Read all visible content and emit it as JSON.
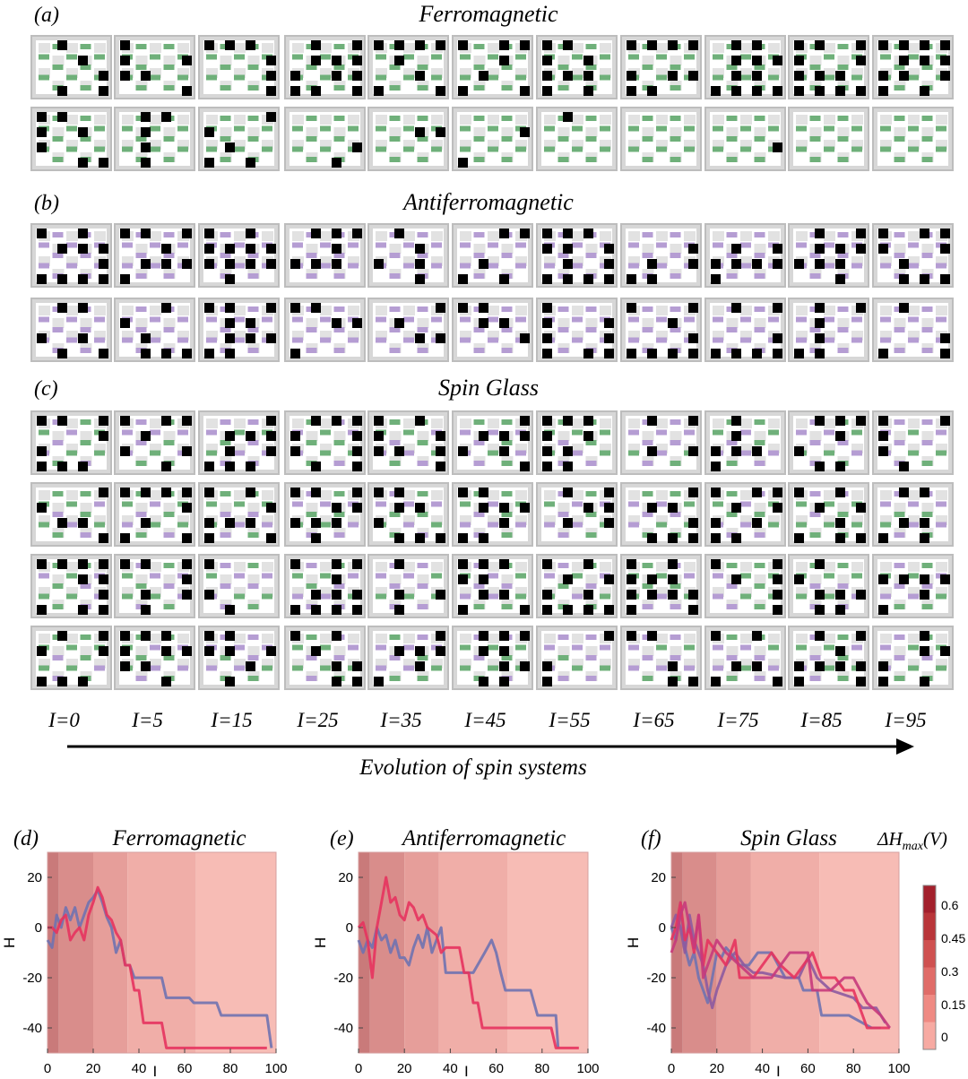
{
  "panel_a": {
    "label": "(a)",
    "title": "Ferromagnetic"
  },
  "panel_b": {
    "label": "(b)",
    "title": "Antiferromagnetic"
  },
  "panel_c": {
    "label": "(c)",
    "title": "Spin Glass"
  },
  "iteration_labels": [
    "I=0",
    "I=5",
    "I=15",
    "I=25",
    "I=35",
    "I=45",
    "I=55",
    "I=65",
    "I=75",
    "I=85",
    "I=95"
  ],
  "arrow_label": "Evolution of spin systems",
  "colors": {
    "ferro_bond": "#6fb07a",
    "antiferro_bond": "#b59dd3",
    "spin": "#000000",
    "tile_bg": "#d7d7d7",
    "tile_border": "#bdbdbd"
  },
  "colorbar": {
    "title": "ΔH",
    "title_sub": "max",
    "title_unit": "(V)",
    "ticks": [
      "0.6",
      "0.45",
      "0.3",
      "0.15",
      "0"
    ],
    "colors": [
      "#a3202c",
      "#b93539",
      "#cf5150",
      "#e06c68",
      "#ef8a83",
      "#f7aaa2"
    ]
  },
  "chart_data": [
    {
      "type": "line",
      "label": "(d)",
      "title": "Ferromagnetic",
      "xlabel": "I",
      "ylabel": "H",
      "xlim": [
        0,
        100
      ],
      "ylim": [
        -50,
        30
      ],
      "xticks": [
        "0",
        "20",
        "40",
        "60",
        "80",
        "100"
      ],
      "yticks": [
        "20",
        "0",
        "-20",
        "-40"
      ],
      "bands": [
        {
          "from": 0,
          "to": 5,
          "level": 0.6
        },
        {
          "from": 5,
          "to": 20,
          "level": 0.45
        },
        {
          "from": 20,
          "to": 35,
          "level": 0.3
        },
        {
          "from": 35,
          "to": 65,
          "level": 0.15
        },
        {
          "from": 65,
          "to": 100,
          "level": 0
        }
      ],
      "series": [
        {
          "color": "#6f72b0",
          "x": [
            0,
            2,
            4,
            6,
            8,
            10,
            12,
            14,
            16,
            18,
            20,
            22,
            24,
            26,
            28,
            30,
            32,
            34,
            36,
            38,
            40,
            50,
            52,
            62,
            64,
            74,
            76,
            96,
            98
          ],
          "y": [
            -5,
            -8,
            5,
            0,
            8,
            3,
            8,
            0,
            5,
            10,
            12,
            15,
            10,
            4,
            0,
            -10,
            -5,
            -15,
            -15,
            -20,
            -20,
            -20,
            -28,
            -28,
            -30,
            -30,
            -35,
            -35,
            -48
          ]
        },
        {
          "color": "#e5335e",
          "x": [
            0,
            2,
            4,
            6,
            8,
            10,
            12,
            14,
            16,
            18,
            20,
            22,
            24,
            26,
            28,
            30,
            32,
            34,
            36,
            38,
            40,
            42,
            44,
            50,
            52,
            62,
            64,
            96
          ],
          "y": [
            0,
            0,
            -2,
            3,
            5,
            -5,
            -2,
            0,
            -5,
            5,
            10,
            16,
            12,
            5,
            3,
            -2,
            -5,
            -15,
            -15,
            -25,
            -25,
            -38,
            -38,
            -38,
            -48,
            -48,
            -48,
            -48
          ]
        }
      ]
    },
    {
      "type": "line",
      "label": "(e)",
      "title": "Antiferromagnetic",
      "xlabel": "I",
      "ylabel": "H",
      "xlim": [
        0,
        100
      ],
      "ylim": [
        -50,
        30
      ],
      "xticks": [
        "0",
        "20",
        "40",
        "60",
        "80",
        "100"
      ],
      "yticks": [
        "20",
        "0",
        "-20",
        "-40"
      ],
      "bands": [
        {
          "from": 0,
          "to": 5,
          "level": 0.6
        },
        {
          "from": 5,
          "to": 20,
          "level": 0.45
        },
        {
          "from": 20,
          "to": 35,
          "level": 0.3
        },
        {
          "from": 35,
          "to": 65,
          "level": 0.15
        },
        {
          "from": 65,
          "to": 100,
          "level": 0
        }
      ],
      "series": [
        {
          "color": "#6f72b0",
          "x": [
            0,
            2,
            4,
            6,
            8,
            10,
            12,
            14,
            16,
            18,
            20,
            22,
            24,
            26,
            28,
            30,
            32,
            34,
            36,
            38,
            40,
            48,
            50,
            55,
            58,
            60,
            62,
            64,
            75,
            78,
            86,
            87
          ],
          "y": [
            -5,
            -10,
            -5,
            -8,
            0,
            -5,
            -3,
            -10,
            -5,
            -12,
            -12,
            -15,
            -8,
            -3,
            -8,
            0,
            -10,
            -5,
            0,
            -18,
            -18,
            -18,
            -18,
            -10,
            -5,
            -10,
            -18,
            -25,
            -25,
            -35,
            -35,
            -48
          ]
        },
        {
          "color": "#e5335e",
          "x": [
            0,
            2,
            4,
            6,
            8,
            10,
            12,
            14,
            16,
            18,
            20,
            22,
            24,
            26,
            28,
            30,
            34,
            36,
            38,
            44,
            46,
            48,
            50,
            52,
            54,
            64,
            66,
            84,
            86,
            96
          ],
          "y": [
            0,
            2,
            -5,
            -20,
            0,
            10,
            20,
            10,
            12,
            5,
            3,
            10,
            8,
            3,
            5,
            0,
            -3,
            -10,
            -8,
            -8,
            -18,
            -18,
            -30,
            -30,
            -40,
            -40,
            -40,
            -40,
            -48,
            -48
          ]
        }
      ]
    },
    {
      "type": "line",
      "label": "(f)",
      "title": "Spin Glass",
      "xlabel": "I",
      "ylabel": "H",
      "xlim": [
        0,
        100
      ],
      "ylim": [
        -50,
        30
      ],
      "xticks": [
        "0",
        "20",
        "40",
        "60",
        "80",
        "100"
      ],
      "yticks": [
        "20",
        "0",
        "-20",
        "-40"
      ],
      "bands": [
        {
          "from": 0,
          "to": 5,
          "level": 0.6
        },
        {
          "from": 5,
          "to": 20,
          "level": 0.45
        },
        {
          "from": 20,
          "to": 35,
          "level": 0.3
        },
        {
          "from": 35,
          "to": 65,
          "level": 0.15
        },
        {
          "from": 65,
          "to": 100,
          "level": 0
        }
      ],
      "series": [
        {
          "color": "#6f72b0",
          "x": [
            0,
            2,
            4,
            6,
            8,
            10,
            12,
            14,
            16,
            18,
            20,
            22,
            24,
            26,
            30,
            34,
            38,
            44,
            50,
            56,
            58,
            64,
            66,
            76,
            78,
            88,
            92
          ],
          "y": [
            0,
            -5,
            10,
            -8,
            -15,
            -10,
            -20,
            -25,
            -30,
            -20,
            -10,
            -12,
            -8,
            -10,
            -15,
            -15,
            -10,
            -10,
            -20,
            -20,
            -25,
            -25,
            -35,
            -35,
            -35,
            -40,
            -40
          ]
        },
        {
          "color": "#8c5aa0",
          "x": [
            0,
            2,
            4,
            6,
            8,
            10,
            12,
            14,
            16,
            18,
            20,
            24,
            28,
            32,
            36,
            40,
            50,
            56,
            60,
            64,
            70,
            80,
            84,
            90,
            94
          ],
          "y": [
            0,
            5,
            0,
            -10,
            5,
            -5,
            -10,
            -15,
            -25,
            -32,
            -25,
            -15,
            -10,
            -15,
            -18,
            -18,
            -20,
            -20,
            -12,
            -20,
            -25,
            -28,
            -32,
            -32,
            -38
          ]
        },
        {
          "color": "#e5335e",
          "x": [
            0,
            2,
            4,
            6,
            8,
            10,
            12,
            14,
            16,
            20,
            24,
            28,
            30,
            36,
            40,
            44,
            48,
            54,
            58,
            62,
            66,
            72,
            76,
            80,
            84,
            86,
            94,
            96
          ],
          "y": [
            -5,
            0,
            10,
            -5,
            0,
            -10,
            5,
            -15,
            -5,
            -10,
            -15,
            -5,
            -20,
            -20,
            -15,
            -10,
            -15,
            -20,
            -15,
            -10,
            -20,
            -20,
            -25,
            -25,
            -35,
            -40,
            -40,
            -40
          ]
        },
        {
          "color": "#c73a7b",
          "x": [
            0,
            2,
            4,
            6,
            8,
            10,
            12,
            14,
            16,
            18,
            20,
            24,
            30,
            36,
            44,
            52,
            60,
            62,
            66,
            70,
            76,
            80,
            86,
            92,
            96
          ],
          "y": [
            -10,
            -5,
            5,
            10,
            0,
            -8,
            5,
            -20,
            -15,
            -10,
            -5,
            -10,
            -15,
            -20,
            -20,
            -10,
            -10,
            -25,
            -25,
            -25,
            -20,
            -20,
            -30,
            -35,
            -40
          ]
        }
      ]
    }
  ]
}
